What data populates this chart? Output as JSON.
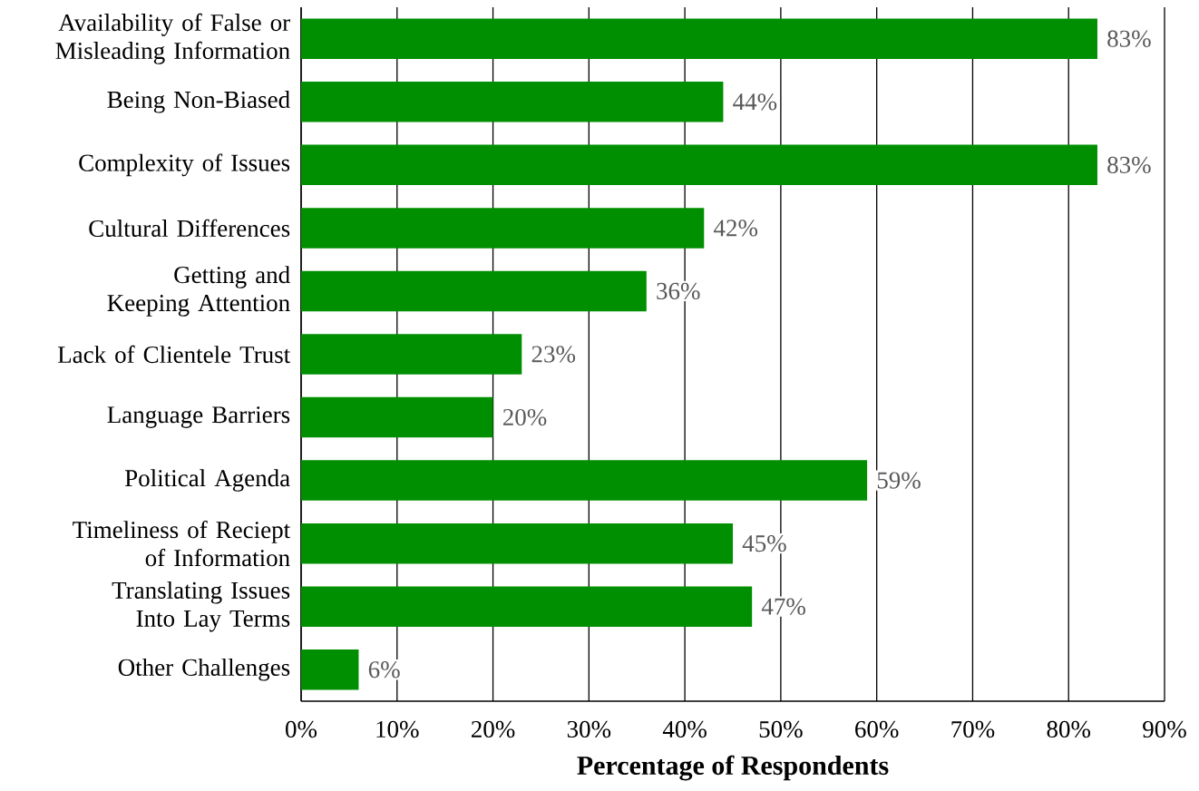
{
  "chart_data": {
    "type": "bar",
    "orientation": "horizontal",
    "xlabel": "Percentage of Respondents",
    "categories": [
      "Availability of False or Misleading Information",
      "Being Non-Biased",
      "Complexity of Issues",
      "Cultural Differences",
      "Getting and Keeping Attention",
      "Lack of Clientele Trust",
      "Language Barriers",
      "Political Agenda",
      "Timeliness of Reciept of Information",
      "Translating Issues Into Lay Terms",
      "Other Challenges"
    ],
    "values": [
      83,
      44,
      83,
      42,
      36,
      23,
      20,
      59,
      45,
      47,
      6
    ],
    "value_labels": [
      "83%",
      "44%",
      "83%",
      "42%",
      "36%",
      "23%",
      "20%",
      "59%",
      "45%",
      "47%",
      "6%"
    ],
    "color": "#008f00",
    "xlim": [
      0,
      90
    ],
    "xticks": [
      {
        "value": 0,
        "label": "0%"
      },
      {
        "value": 10,
        "label": "10%"
      },
      {
        "value": 20,
        "label": "20%"
      },
      {
        "value": 30,
        "label": "30%"
      },
      {
        "value": 40,
        "label": "40%"
      },
      {
        "value": 50,
        "label": "50%"
      },
      {
        "value": 60,
        "label": "60%"
      },
      {
        "value": 70,
        "label": "70%"
      },
      {
        "value": 80,
        "label": "80%"
      },
      {
        "value": 90,
        "label": "90%"
      }
    ],
    "grid": "x"
  }
}
